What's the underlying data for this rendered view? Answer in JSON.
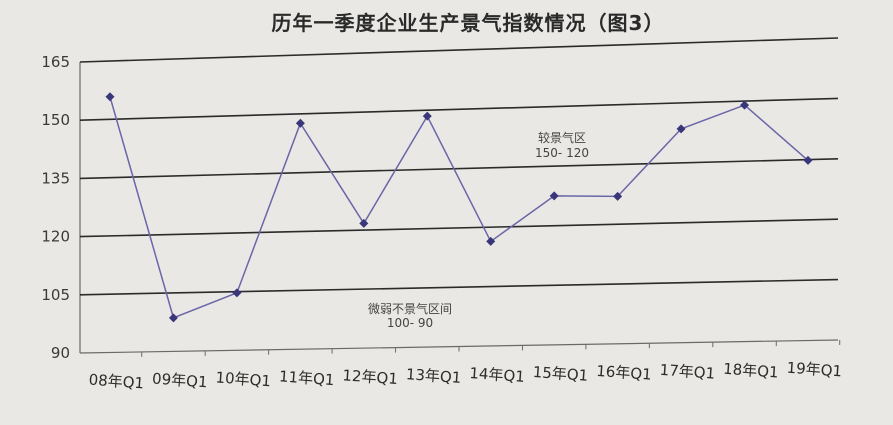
{
  "chart_data": {
    "type": "line",
    "title": "历年一季度企业生产景气指数情况（图3）",
    "categories": [
      "08年Q1",
      "09年Q1",
      "10年Q1",
      "11年Q1",
      "12年Q1",
      "13年Q1",
      "14年Q1",
      "15年Q1",
      "16年Q1",
      "17年Q1",
      "18年Q1",
      "19年Q1"
    ],
    "series": [
      {
        "values": [
          155.8,
          98.6,
          104.7,
          147.6,
          121.7,
          148.5,
          116.4,
          127.5,
          127.0,
          143.5,
          149.0,
          134.8
        ]
      }
    ],
    "ylim": [
      90,
      165
    ],
    "yticks": [
      90,
      105,
      120,
      135,
      150,
      165
    ],
    "grid": true,
    "annotations": [
      {
        "line1": "较景气区",
        "line2": "150- 120"
      },
      {
        "line1": "微弱不景气区间",
        "line2": "100- 90"
      }
    ],
    "colors": {
      "line": "#6a66a8",
      "marker": "#3a367a",
      "grid": "#2b2b2b"
    }
  }
}
